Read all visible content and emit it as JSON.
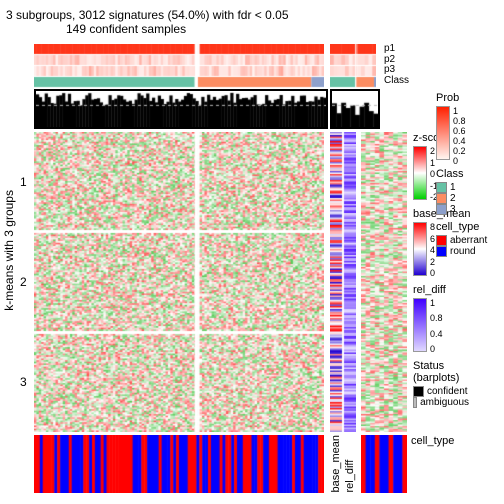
{
  "title": "3 subgroups, 3012 signatures (54.0%) with fdr < 0.05",
  "subtitle": "149 confident samples",
  "axis": {
    "y_label": "k-means with 3 groups",
    "row_ticks": [
      "1",
      "2",
      "3"
    ]
  },
  "annotation_tracks": {
    "top_labels": [
      "p1",
      "p2",
      "p3",
      "Class"
    ],
    "density_title": "",
    "p_colors": [
      "#ff0000",
      "#ffd0c0",
      "#ffe8e0"
    ],
    "class_colors": [
      "#66c2a5",
      "#fc8d62",
      "#8da0cb"
    ]
  },
  "column_tracks": {
    "base_mean": {
      "label": "base_mean",
      "colors": [
        "#2000d0",
        "#ffffff",
        "#ff0000"
      ],
      "breaks": [
        "0",
        "2",
        "4",
        "6",
        "8"
      ]
    },
    "rel_diff": {
      "label": "rel_diff",
      "colors": [
        "#e0d8ff",
        "#4000ff"
      ],
      "breaks": [
        "0",
        "0.2",
        "0.4",
        "0.6",
        "0.8",
        "1"
      ]
    },
    "cell_type": {
      "label": "cell_type"
    }
  },
  "bottom_track": {
    "label": "cell_type",
    "colors": [
      "#0000ff",
      "#ff0000"
    ]
  },
  "legends": {
    "zscore": {
      "title": "z-score",
      "colors": [
        "#00d000",
        "#ffffff",
        "#ff0000"
      ],
      "breaks": [
        "-2",
        "-1",
        "0",
        "1",
        "2"
      ]
    },
    "prob": {
      "title": "Prob",
      "colors": [
        "#fff5f0",
        "#ff2000"
      ],
      "breaks": [
        "0",
        "0.2",
        "0.4",
        "0.6",
        "0.8",
        "1"
      ]
    },
    "class": {
      "title": "Class",
      "items": [
        {
          "label": "1",
          "color": "#66c2a5"
        },
        {
          "label": "2",
          "color": "#fc8d62"
        },
        {
          "label": "3",
          "color": "#8da0cb"
        }
      ]
    },
    "cell_type": {
      "title": "cell_type",
      "items": [
        {
          "label": "aberrant",
          "color": "#ff0000"
        },
        {
          "label": "round",
          "color": "#0000ff"
        }
      ]
    },
    "status": {
      "title": "Status (barplots)",
      "items": [
        {
          "label": "confident",
          "color": "#000000"
        },
        {
          "label": "ambiguous",
          "color": "#bbbbbb"
        }
      ]
    }
  },
  "heatmap": {
    "type": "heatmap",
    "row_groups": 3,
    "col_split": 2,
    "col_split_ratio": 0.56,
    "palette": {
      "low": "#00b000",
      "mid": "#ffffff",
      "high": "#ff0000"
    },
    "seed": 42
  },
  "mini_heatmap": {
    "cols": 10,
    "rows": 100
  },
  "colors": {
    "bg": "#ffffff",
    "border": "#000000",
    "grid": "#aaaaaa"
  },
  "typography": {
    "title_size": 12,
    "axis_size": 12,
    "legend_size": 10
  }
}
